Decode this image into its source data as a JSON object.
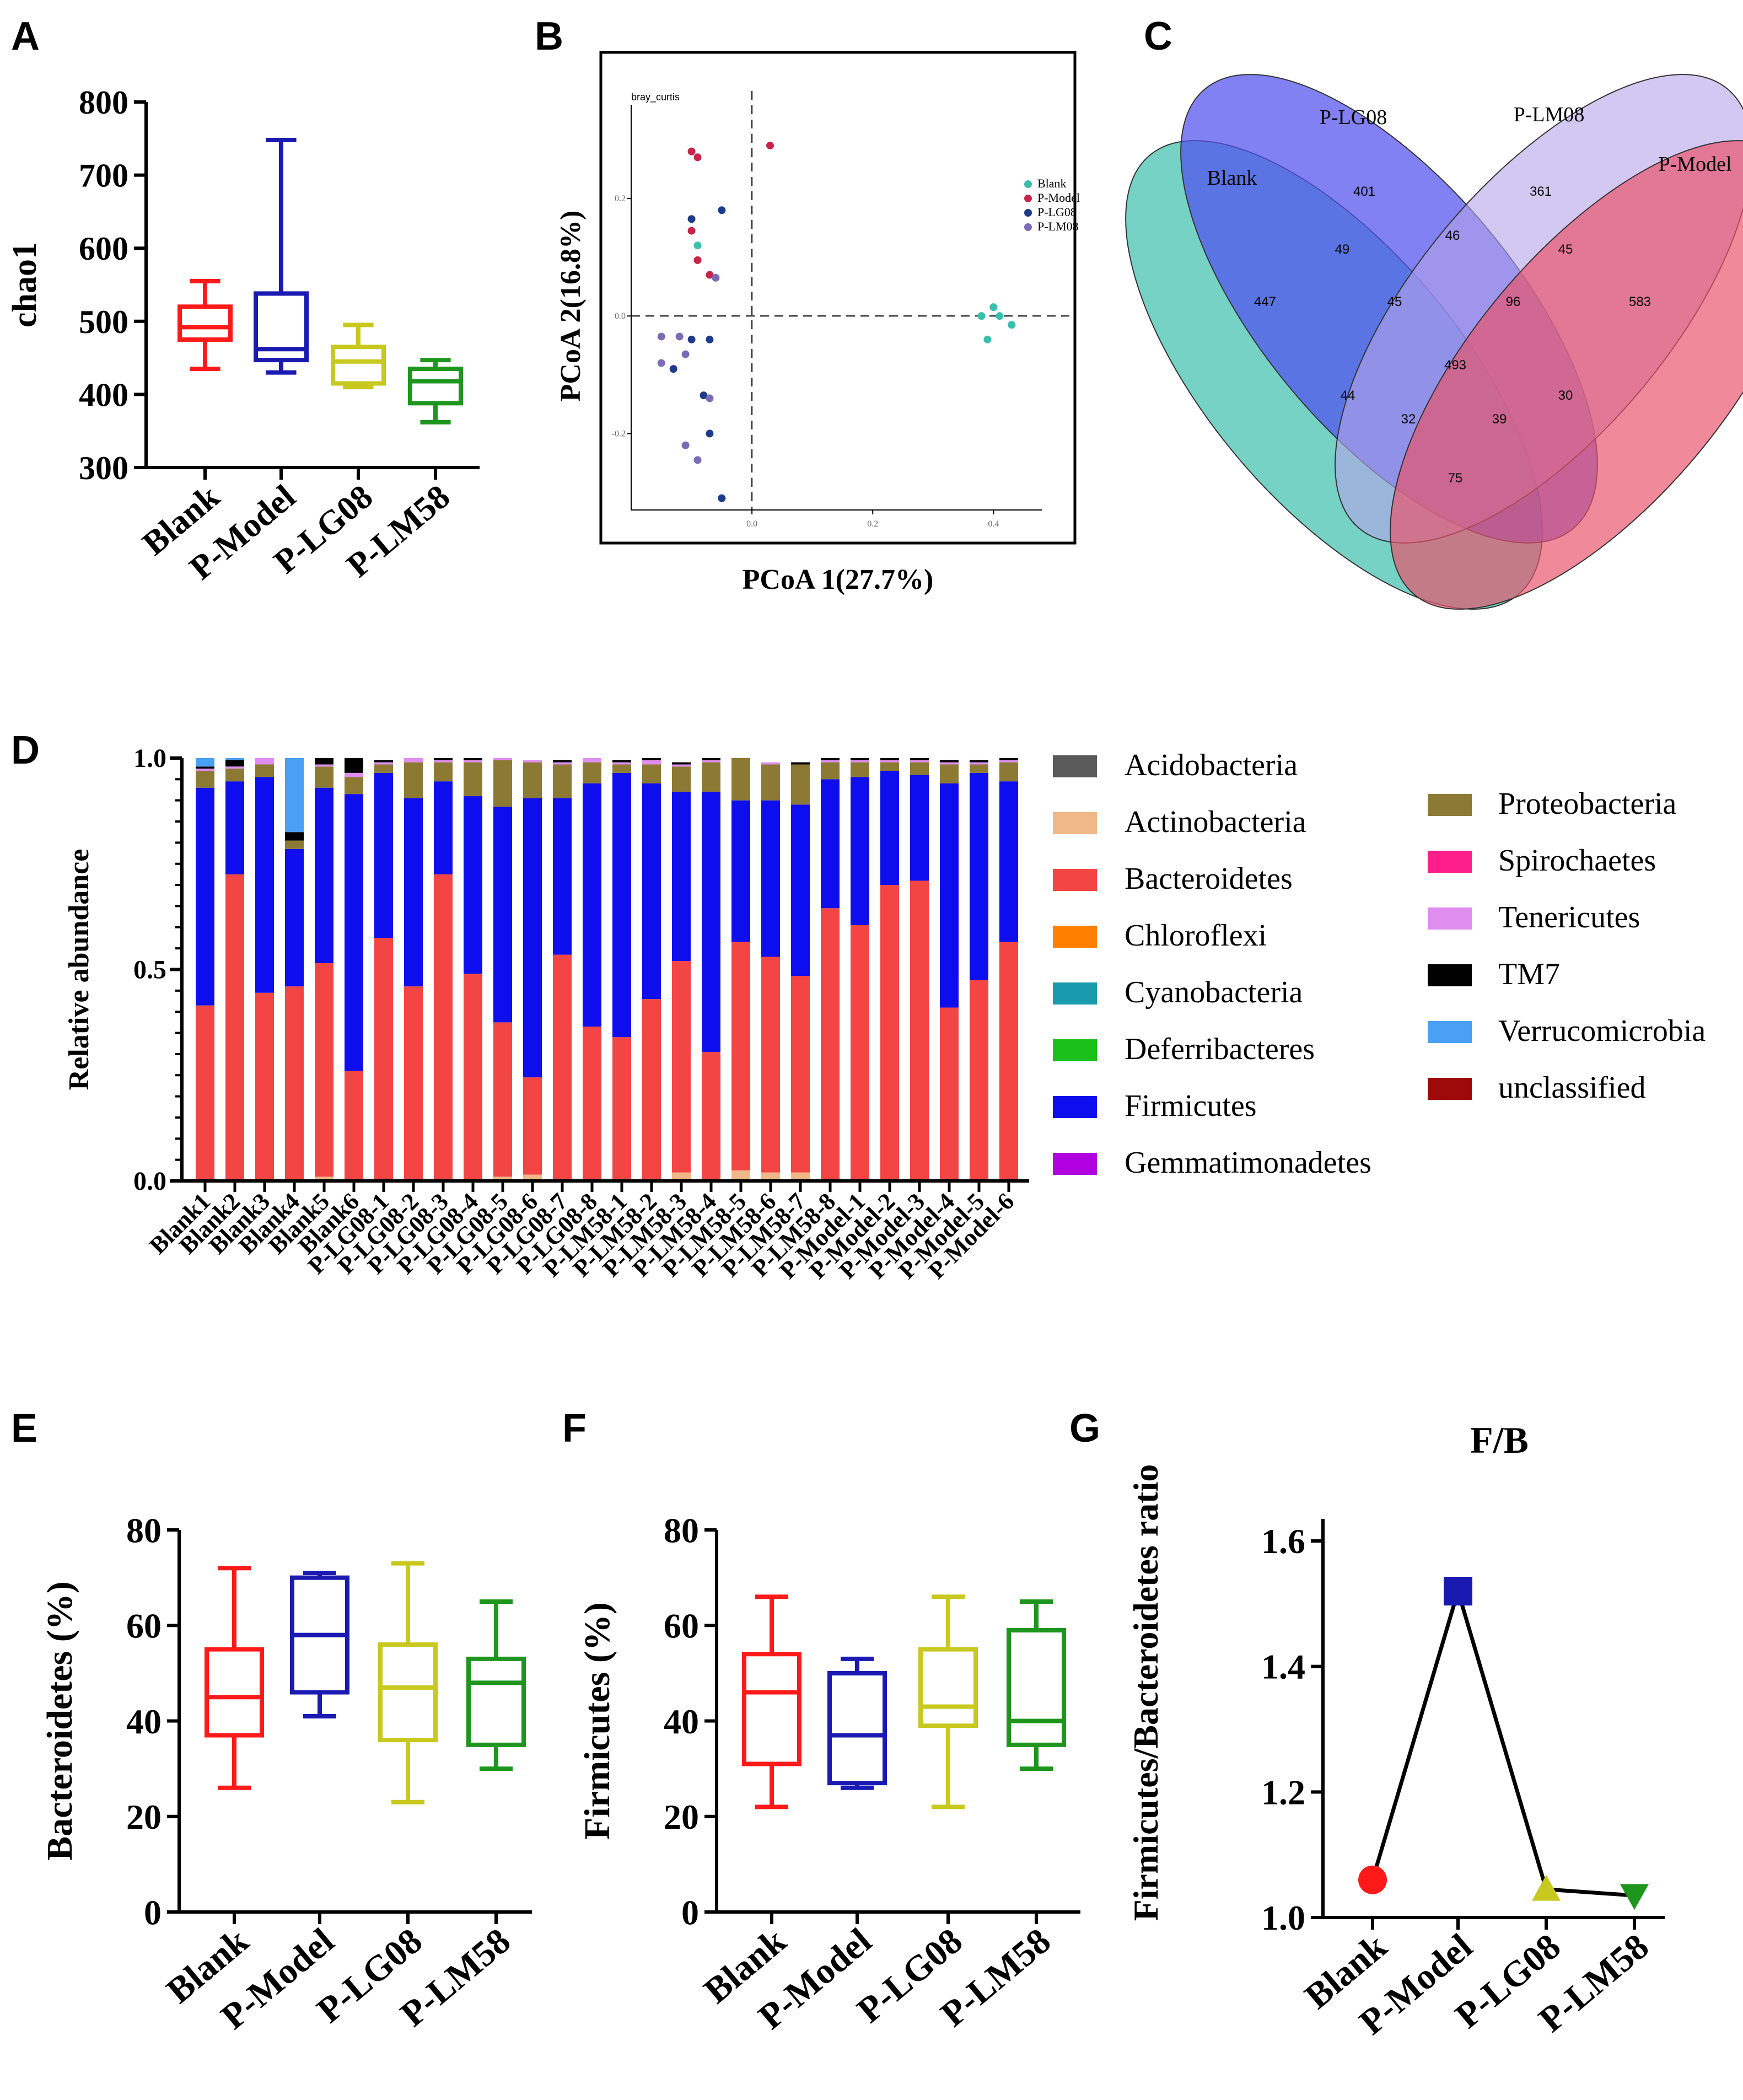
{
  "panels": {
    "A": "A",
    "B": "B",
    "C": "C",
    "D": "D",
    "E": "E",
    "F": "F",
    "G": "G"
  },
  "colors": {
    "Blank": "#ff1a1a",
    "P-Model": "#1a1ab3",
    "P-LG08": "#c8c81e",
    "P-LM58": "#1e961e"
  },
  "chart_data": [
    {
      "id": "A",
      "type": "box",
      "ylabel": "chao1",
      "ylim": [
        300,
        800
      ],
      "yticks": [
        300,
        400,
        500,
        600,
        700,
        800
      ],
      "categories": [
        "Blank",
        "P-Model",
        "P-LG08",
        "P-LM58"
      ],
      "boxes": [
        {
          "min": 435,
          "q1": 475,
          "median": 492,
          "q3": 520,
          "max": 555
        },
        {
          "min": 430,
          "q1": 447,
          "median": 462,
          "q3": 538,
          "max": 748
        },
        {
          "min": 410,
          "q1": 415,
          "median": 445,
          "q3": 465,
          "max": 495
        },
        {
          "min": 362,
          "q1": 388,
          "median": 418,
          "q3": 435,
          "max": 447
        }
      ]
    },
    {
      "id": "B",
      "type": "scatter",
      "title": "bray_curtis",
      "xlabel": "PCoA 1(27.7%)",
      "ylabel": "PCoA 2(16.8%)",
      "xlim": [
        -0.2,
        0.48
      ],
      "ylim": [
        -0.33,
        0.35
      ],
      "xticks": [
        "0.0",
        "0.2",
        "0.4"
      ],
      "yticks": [
        "0.2",
        "0.0",
        "-0.2"
      ],
      "legend": [
        "Blank",
        "P-Model",
        "P-LG08",
        "P-LM08"
      ],
      "legend_colors": [
        "#3bbfad",
        "#c8234a",
        "#1f3a8a",
        "#7b6bb5"
      ],
      "series": [
        {
          "name": "Blank",
          "points": [
            [
              -0.09,
              0.12
            ],
            [
              0.38,
              0.0
            ],
            [
              0.4,
              0.015
            ],
            [
              0.41,
              0.0
            ],
            [
              0.39,
              -0.04
            ],
            [
              0.43,
              -0.015
            ]
          ]
        },
        {
          "name": "P-Model",
          "points": [
            [
              -0.1,
              0.28
            ],
            [
              -0.09,
              0.27
            ],
            [
              0.03,
              0.29
            ],
            [
              -0.1,
              0.145
            ],
            [
              -0.09,
              0.095
            ],
            [
              -0.07,
              0.07
            ]
          ]
        },
        {
          "name": "P-LG08",
          "points": [
            [
              -0.1,
              0.165
            ],
            [
              -0.05,
              0.18
            ],
            [
              -0.1,
              -0.04
            ],
            [
              -0.07,
              -0.04
            ],
            [
              -0.13,
              -0.09
            ],
            [
              -0.08,
              -0.135
            ],
            [
              -0.07,
              -0.2
            ],
            [
              -0.05,
              -0.31
            ]
          ]
        },
        {
          "name": "P-LM08",
          "points": [
            [
              -0.06,
              0.065
            ],
            [
              -0.15,
              -0.035
            ],
            [
              -0.12,
              -0.035
            ],
            [
              -0.11,
              -0.065
            ],
            [
              -0.15,
              -0.08
            ],
            [
              -0.07,
              -0.14
            ],
            [
              -0.11,
              -0.22
            ],
            [
              -0.09,
              -0.245
            ]
          ]
        }
      ]
    },
    {
      "id": "C",
      "type": "venn",
      "sets": [
        "Blank",
        "P-LG08",
        "P-LM08",
        "P-Model"
      ],
      "regions": [
        "447",
        "401",
        "361",
        "583",
        "49",
        "46",
        "45",
        "45",
        "96",
        "493",
        "44",
        "30",
        "32",
        "39",
        "75"
      ]
    },
    {
      "id": "D",
      "type": "stacked_bar",
      "ylabel": "Relative abundance",
      "yticks": [
        "0.0",
        "0.5",
        "1.0"
      ],
      "categories": [
        "Blank1",
        "Blank2",
        "Blank3",
        "Blank4",
        "Blank5",
        "Blank6",
        "P-LG08-1",
        "P-LG08-2",
        "P-LG08-3",
        "P-LG08-4",
        "P-LG08-5",
        "P-LG08-6",
        "P-LG08-7",
        "P-LG08-8",
        "P-LM58-1",
        "P-LM58-2",
        "P-LM58-3",
        "P-LM58-4",
        "P-LM58-5",
        "P-LM58-6",
        "P-LM58-7",
        "P-LM58-8",
        "P-Model-1",
        "P-Model-2",
        "P-Model-3",
        "P-Model-4",
        "P-Model-5",
        "P-Model-6"
      ],
      "legend_left": [
        "Acidobacteria",
        "Actinobacteria",
        "Bacteroidetes",
        "Chloroflexi",
        "Cyanobacteria",
        "Deferribacteres",
        "Firmicutes",
        "Gemmatimonadetes"
      ],
      "legend_right": [
        "Proteobacteria",
        "Spirochaetes",
        "Tenericutes",
        "TM7",
        "Verrucomicrobia",
        "unclassified"
      ],
      "legend_colors": {
        "Acidobacteria": "#5a5a5a",
        "Actinobacteria": "#f0b888",
        "Bacteroidetes": "#f44545",
        "Chloroflexi": "#ff8000",
        "Cyanobacteria": "#1a9bad",
        "Deferribacteres": "#1abf1a",
        "Firmicutes": "#0d0ded",
        "Gemmatimonadetes": "#b000e0",
        "Proteobacteria": "#8c7a34",
        "Spirochaetes": "#ff1f8a",
        "Tenericutes": "#df8ef0",
        "TM7": "#000000",
        "Verrucomicrobia": "#4aa0f5",
        "unclassified": "#9e0a0a"
      },
      "stack_order": [
        "Actinobacteria",
        "Bacteroidetes",
        "Firmicutes",
        "Proteobacteria",
        "Tenericutes",
        "TM7",
        "Verrucomicrobia"
      ],
      "series": {
        "Actinobacteria": [
          0,
          0,
          0,
          0,
          0.01,
          0,
          0,
          0,
          0,
          0,
          0.01,
          0.015,
          0,
          0,
          0.005,
          0.005,
          0.02,
          0,
          0.025,
          0.02,
          0.02,
          0,
          0,
          0,
          0,
          0,
          0,
          0
        ],
        "Bacteroidetes": [
          0.415,
          0.725,
          0.445,
          0.46,
          0.505,
          0.26,
          0.575,
          0.46,
          0.725,
          0.49,
          0.365,
          0.23,
          0.535,
          0.365,
          0.335,
          0.425,
          0.5,
          0.305,
          0.54,
          0.51,
          0.465,
          0.645,
          0.605,
          0.7,
          0.71,
          0.41,
          0.475,
          0.565
        ],
        "Firmicutes": [
          0.515,
          0.22,
          0.51,
          0.325,
          0.415,
          0.655,
          0.39,
          0.445,
          0.22,
          0.42,
          0.51,
          0.66,
          0.37,
          0.575,
          0.625,
          0.51,
          0.4,
          0.615,
          0.335,
          0.37,
          0.405,
          0.305,
          0.35,
          0.27,
          0.25,
          0.53,
          0.49,
          0.38
        ],
        "Proteobacteria": [
          0.04,
          0.03,
          0.03,
          0.02,
          0.05,
          0.04,
          0.02,
          0.085,
          0.045,
          0.08,
          0.11,
          0.085,
          0.08,
          0.05,
          0.02,
          0.045,
          0.06,
          0.07,
          0.1,
          0.085,
          0.095,
          0.04,
          0.035,
          0.02,
          0.03,
          0.045,
          0.02,
          0.045
        ],
        "Tenericutes": [
          0.005,
          0.005,
          0.015,
          0,
          0.005,
          0.01,
          0.005,
          0.01,
          0.005,
          0.005,
          0.005,
          0.005,
          0.005,
          0.01,
          0.005,
          0.01,
          0.005,
          0.005,
          0,
          0.005,
          0,
          0.005,
          0.005,
          0.005,
          0.005,
          0.005,
          0.005,
          0.005
        ],
        "TM7": [
          0.005,
          0.015,
          0,
          0.02,
          0.015,
          0.035,
          0.005,
          0,
          0.005,
          0.005,
          0,
          0,
          0.005,
          0,
          0.005,
          0.005,
          0.005,
          0.005,
          0,
          0,
          0.005,
          0.005,
          0.005,
          0.005,
          0.005,
          0.005,
          0.005,
          0.005
        ],
        "Verrucomicrobia": [
          0.02,
          0.005,
          0,
          0.175,
          0,
          0,
          0,
          0,
          0,
          0,
          0,
          0,
          0,
          0,
          0,
          0,
          0,
          0,
          0,
          0,
          0,
          0,
          0,
          0,
          0,
          0,
          0,
          0
        ]
      }
    },
    {
      "id": "E",
      "type": "box",
      "ylabel": "Bacteroidetes (%)",
      "ylim": [
        0,
        80
      ],
      "yticks": [
        0,
        20,
        40,
        60,
        80
      ],
      "categories": [
        "Blank",
        "P-Model",
        "P-LG08",
        "P-LM58"
      ],
      "boxes": [
        {
          "min": 26,
          "q1": 37,
          "median": 45,
          "q3": 55,
          "max": 72
        },
        {
          "min": 41,
          "q1": 46,
          "median": 58,
          "q3": 70,
          "max": 71
        },
        {
          "min": 23,
          "q1": 36,
          "median": 47,
          "q3": 56,
          "max": 73
        },
        {
          "min": 30,
          "q1": 35,
          "median": 48,
          "q3": 53,
          "max": 65
        }
      ]
    },
    {
      "id": "F",
      "type": "box",
      "ylabel": "Firmicutes (%)",
      "ylim": [
        0,
        80
      ],
      "yticks": [
        0,
        20,
        40,
        60,
        80
      ],
      "categories": [
        "Blank",
        "P-Model",
        "P-LG08",
        "P-LM58"
      ],
      "boxes": [
        {
          "min": 22,
          "q1": 31,
          "median": 46,
          "q3": 54,
          "max": 66
        },
        {
          "min": 26,
          "q1": 27,
          "median": 37,
          "q3": 50,
          "max": 53
        },
        {
          "min": 22,
          "q1": 39,
          "median": 43,
          "q3": 55,
          "max": 66
        },
        {
          "min": 30,
          "q1": 35,
          "median": 40,
          "q3": 59,
          "max": 65
        }
      ]
    },
    {
      "id": "G",
      "type": "line",
      "title": "F/B",
      "ylabel": "Firmicutes/Bacteroidetes ratio",
      "ylim": [
        1.0,
        1.6
      ],
      "yticks": [
        "1.0",
        "1.2",
        "1.4",
        "1.6"
      ],
      "categories": [
        "Blank",
        "P-Model",
        "P-LG08",
        "P-LM58"
      ],
      "values": [
        1.06,
        1.52,
        1.045,
        1.035
      ],
      "markers": [
        "circle",
        "square",
        "triangle-up",
        "triangle-down"
      ]
    }
  ]
}
